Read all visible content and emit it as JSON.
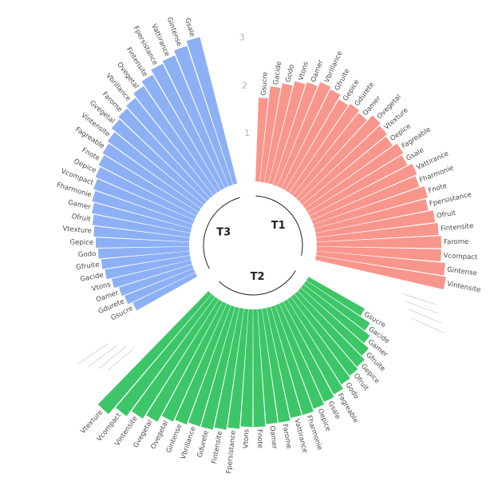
{
  "chart_data": {
    "type": "bar",
    "layout": "circular",
    "y_ticks": [
      "1",
      "2",
      "3",
      "4"
    ],
    "ylim": [
      0,
      4
    ],
    "colors": {
      "T1": "#f8968c",
      "T2": "#3dc667",
      "T3": "#8db0f5"
    },
    "groups": [
      {
        "name": "T1",
        "categories": [
          "Gsucre",
          "Gacide",
          "Godo",
          "Vtons",
          "Oamer",
          "Vbrillance",
          "Gfruite",
          "Gepice",
          "Gdurete",
          "Oamer",
          "Ovegetal",
          "Vtexture",
          "Oepice",
          "Fagreable",
          "Gsale",
          "Vattirance",
          "Fharmonie",
          "Fnote",
          "Fpersistance",
          "Ofruit",
          "Fintensite",
          "Farome",
          "Vcompact",
          "Gintense",
          "Vintensite"
        ],
        "values": [
          1.75,
          2.0,
          2.1,
          2.2,
          2.25,
          2.35,
          2.3,
          2.2,
          2.25,
          2.2,
          2.35,
          2.3,
          2.25,
          2.35,
          2.3,
          2.4,
          2.35,
          2.45,
          2.4,
          2.5,
          2.55,
          2.6,
          2.6,
          2.7,
          2.75
        ]
      },
      {
        "name": "T2",
        "categories": [
          "Gsucre",
          "Gacide",
          "Gamer",
          "Gfruite",
          "Gepice",
          "Ofruit",
          "Godo",
          "Fagreable",
          "Gsale",
          "Oepice",
          "Fharmonie",
          "Vattirance",
          "Farome",
          "Oamer",
          "Fnote",
          "Vtons",
          "Fpersistance",
          "Fintensite",
          "Gdurete",
          "Vbrillance",
          "Gintense",
          "Ovegetal",
          "Gvegetal",
          "Vintensite",
          "Vcompact",
          "Vtexture"
        ],
        "values": [
          1.35,
          1.6,
          1.75,
          1.9,
          2.0,
          2.05,
          2.1,
          2.2,
          2.25,
          2.3,
          2.35,
          2.35,
          2.4,
          2.4,
          2.45,
          2.45,
          2.5,
          2.55,
          2.6,
          2.6,
          2.65,
          2.7,
          2.85,
          2.95,
          3.1,
          3.3
        ]
      },
      {
        "name": "T3",
        "categories": [
          "Gsucre",
          "Gdurete",
          "Oamer",
          "Vtons",
          "Gacide",
          "Gfruite",
          "Godo",
          "Gepice",
          "Vtexture",
          "Ofruit",
          "Gamer",
          "Fharmonie",
          "Vcompact",
          "Oepice",
          "Fnote",
          "Fagreable",
          "Vintensite",
          "Gvegetal",
          "Farome",
          "Vbrillance",
          "Ovegetal",
          "Fintensite",
          "Fpersistance",
          "Vattirance",
          "Gintense",
          "Gsale"
        ],
        "values": [
          1.45,
          1.55,
          1.6,
          1.7,
          1.8,
          1.85,
          1.9,
          1.95,
          2.0,
          2.05,
          2.1,
          2.15,
          2.2,
          2.25,
          2.3,
          2.35,
          2.4,
          2.5,
          2.55,
          2.6,
          2.7,
          2.8,
          2.9,
          2.95,
          3.05,
          3.15
        ]
      }
    ]
  }
}
